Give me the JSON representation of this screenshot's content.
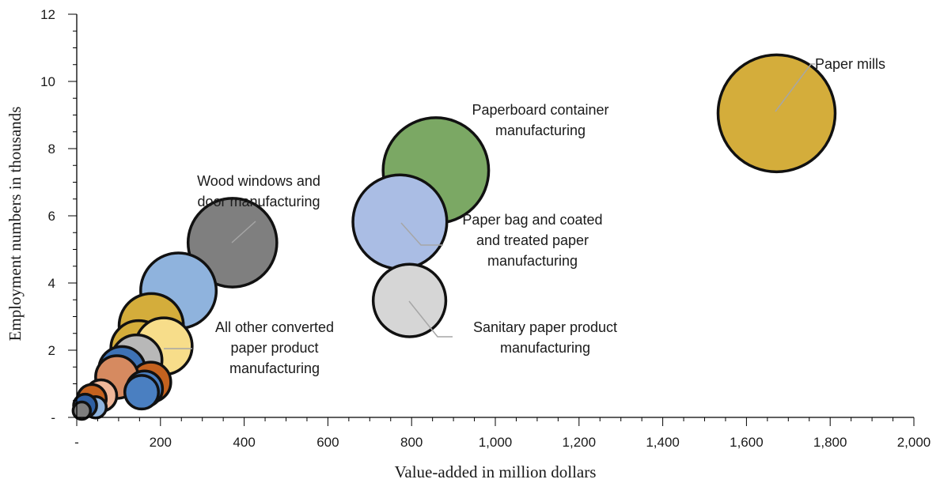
{
  "chart_data": {
    "type": "scatter",
    "xlabel": "Value-added in million dollars",
    "ylabel": "Employment numbers in thousands",
    "xlim": [
      0,
      2000
    ],
    "ylim": [
      0,
      12
    ],
    "x_ticks": [
      0,
      200,
      400,
      600,
      800,
      1000,
      1200,
      1400,
      1600,
      1800,
      2000
    ],
    "x_tick_labels": [
      "-",
      "200",
      "400",
      "600",
      "800",
      "1,000",
      "1,200",
      "1,400",
      "1,600",
      "1,800",
      "2,000"
    ],
    "y_ticks": [
      0,
      2,
      4,
      6,
      8,
      10,
      12
    ],
    "y_tick_labels": [
      "-",
      "2",
      "4",
      "6",
      "8",
      "10",
      "12"
    ],
    "grid": false,
    "bubble_size_encodes": "employment",
    "points": [
      {
        "x": 1672,
        "y": 9.05,
        "color": "#d4ad3b",
        "label": "Paper mills"
      },
      {
        "x": 858,
        "y": 7.35,
        "color": "#7ba864",
        "label": "Paperboard container manufacturing"
      },
      {
        "x": 772,
        "y": 5.82,
        "color": "#aabde4",
        "label": "Paper bag and coated and treated paper manufacturing"
      },
      {
        "x": 795,
        "y": 3.48,
        "color": "#d6d6d6",
        "label": "Sanitary paper product manufacturing"
      },
      {
        "x": 372,
        "y": 5.2,
        "color": "#7f7f7f",
        "label": "Wood windows and door manufacturing"
      },
      {
        "x": 243,
        "y": 3.77,
        "color": "#8fb3dd"
      },
      {
        "x": 178,
        "y": 2.73,
        "color": "#d4ad3b"
      },
      {
        "x": 148,
        "y": 2.05,
        "color": "#d4ad3b"
      },
      {
        "x": 208,
        "y": 2.12,
        "color": "#f7dd8a",
        "label": "All other converted paper product manufacturing"
      },
      {
        "x": 143,
        "y": 1.7,
        "color": "#b8b8b8"
      },
      {
        "x": 108,
        "y": 1.42,
        "color": "#3e72b5"
      },
      {
        "x": 177,
        "y": 1.05,
        "color": "#c4621f"
      },
      {
        "x": 96,
        "y": 1.2,
        "color": "#d68a60"
      },
      {
        "x": 162,
        "y": 0.85,
        "color": "#4a7fc1"
      },
      {
        "x": 155,
        "y": 0.75,
        "color": "#4a7fc1"
      },
      {
        "x": 58,
        "y": 0.65,
        "color": "#f0b89a"
      },
      {
        "x": 36,
        "y": 0.55,
        "color": "#c4621f"
      },
      {
        "x": 45,
        "y": 0.3,
        "color": "#8fb3dd"
      },
      {
        "x": 20,
        "y": 0.35,
        "color": "#2e5fa3"
      },
      {
        "x": 12,
        "y": 0.2,
        "color": "#7f7f7f"
      }
    ],
    "annotations": [
      {
        "lines": [
          "Paper mills"
        ],
        "color": "#1a1a1a"
      },
      {
        "lines": [
          "Paperboard container",
          "manufacturing"
        ],
        "color": "#1a1a1a"
      },
      {
        "lines": [
          "Paper bag and coated",
          "and treated paper",
          "manufacturing"
        ],
        "color": "#1a1a1a"
      },
      {
        "lines": [
          "Sanitary paper product",
          "manufacturing"
        ],
        "color": "#6b6b6b"
      },
      {
        "lines": [
          "Wood windows and",
          "door manufacturing"
        ],
        "color": "#1a1a1a"
      },
      {
        "lines": [
          "All other converted",
          "paper product",
          "manufacturing"
        ],
        "color": "#1a1a1a"
      }
    ]
  }
}
